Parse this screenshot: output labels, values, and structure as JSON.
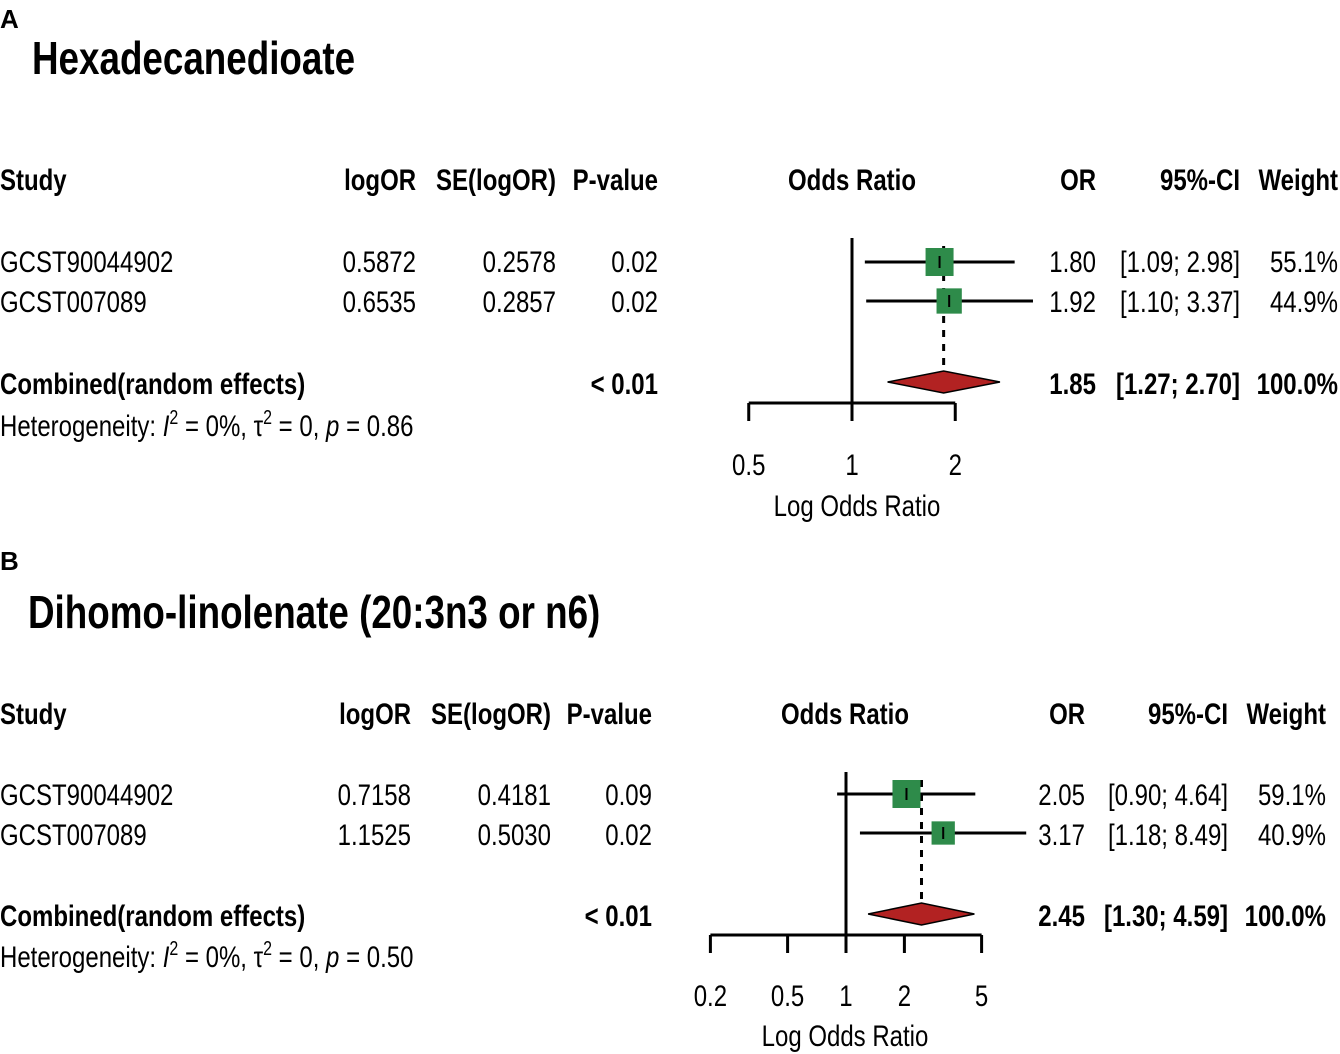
{
  "chart_data": [
    {
      "type": "forest",
      "panel_label": "A",
      "title": "Hexadecanedioate",
      "headers": {
        "study": "Study",
        "logor": "logOR",
        "se": "SE(logOR)",
        "pvalue": "P-value",
        "plot": "Odds Ratio",
        "or": "OR",
        "ci": "95%-CI",
        "weight": "Weight"
      },
      "studies": [
        {
          "study": "GCST90044902",
          "logor": "0.5872",
          "se": "0.2578",
          "pvalue": "0.02",
          "or_label": "1.80",
          "ci_label": "[1.09; 2.98]",
          "weight_label": "55.1%",
          "or": 1.8,
          "lower": 1.09,
          "upper": 2.98,
          "weight": 55.1
        },
        {
          "study": "GCST007089",
          "logor": "0.6535",
          "se": "0.2857",
          "pvalue": "0.02",
          "or_label": "1.92",
          "ci_label": "[1.10; 3.37]",
          "weight_label": "44.9%",
          "or": 1.92,
          "lower": 1.1,
          "upper": 3.37,
          "weight": 44.9
        }
      ],
      "combined": {
        "label": "Combined(random effects)",
        "pvalue": "< 0.01",
        "or_label": "1.85",
        "ci_label": "[1.27; 2.70]",
        "weight_label": "100.0%",
        "or": 1.85,
        "lower": 1.27,
        "upper": 2.7
      },
      "heterogeneity": {
        "prefix": "Heterogeneity: ",
        "i2_symbol": "I",
        "sup": "2",
        "i2_value": " = 0%, ",
        "tau_symbol": "τ",
        "tau_value": " = 0, ",
        "p_symbol": "p",
        "p_value": " = 0.86"
      },
      "axis": {
        "label": "Log Odds Ratio",
        "ticks": [
          0.5,
          1,
          2
        ],
        "tick_labels": [
          "0.5",
          "1",
          "2"
        ],
        "range": [
          0.5,
          2
        ],
        "extent": [
          0.5,
          3.4
        ],
        "null_value": 1
      }
    },
    {
      "type": "forest",
      "panel_label": "B",
      "title": "Dihomo-linolenate (20:3n3 or n6)",
      "headers": {
        "study": "Study",
        "logor": "logOR",
        "se": "SE(logOR)",
        "pvalue": "P-value",
        "plot": "Odds Ratio",
        "or": "OR",
        "ci": "95%-CI",
        "weight": "Weight"
      },
      "studies": [
        {
          "study": "GCST90044902",
          "logor": "0.7158",
          "se": "0.4181",
          "pvalue": "0.09",
          "or_label": "2.05",
          "ci_label": "[0.90; 4.64]",
          "weight_label": "59.1%",
          "or": 2.05,
          "lower": 0.9,
          "upper": 4.64,
          "weight": 59.1
        },
        {
          "study": "GCST007089",
          "logor": "1.1525",
          "se": "0.5030",
          "pvalue": "0.02",
          "or_label": "3.17",
          "ci_label": "[1.18; 8.49]",
          "weight_label": "40.9%",
          "or": 3.17,
          "lower": 1.18,
          "upper": 8.49,
          "weight": 40.9
        }
      ],
      "combined": {
        "label": "Combined(random effects)",
        "pvalue": "< 0.01",
        "or_label": "2.45",
        "ci_label": "[1.30; 4.59]",
        "weight_label": "100.0%",
        "or": 2.45,
        "lower": 1.3,
        "upper": 4.59
      },
      "heterogeneity": {
        "prefix": "Heterogeneity: ",
        "i2_symbol": "I",
        "sup": "2",
        "i2_value": " = 0%, ",
        "tau_symbol": "τ",
        "tau_value": " = 0, ",
        "p_symbol": "p",
        "p_value": " = 0.50"
      },
      "axis": {
        "label": "Log Odds Ratio",
        "ticks": [
          0.2,
          0.5,
          1,
          2,
          5
        ],
        "tick_labels": [
          "0.2",
          "0.5",
          "1",
          "2",
          "5"
        ],
        "range": [
          0.2,
          5
        ],
        "extent": [
          0.8,
          8.5
        ],
        "null_value": 1
      }
    }
  ],
  "colors": {
    "study_square": "#2e8b4a",
    "combined_diamond": "#b22222",
    "line": "#000000"
  }
}
